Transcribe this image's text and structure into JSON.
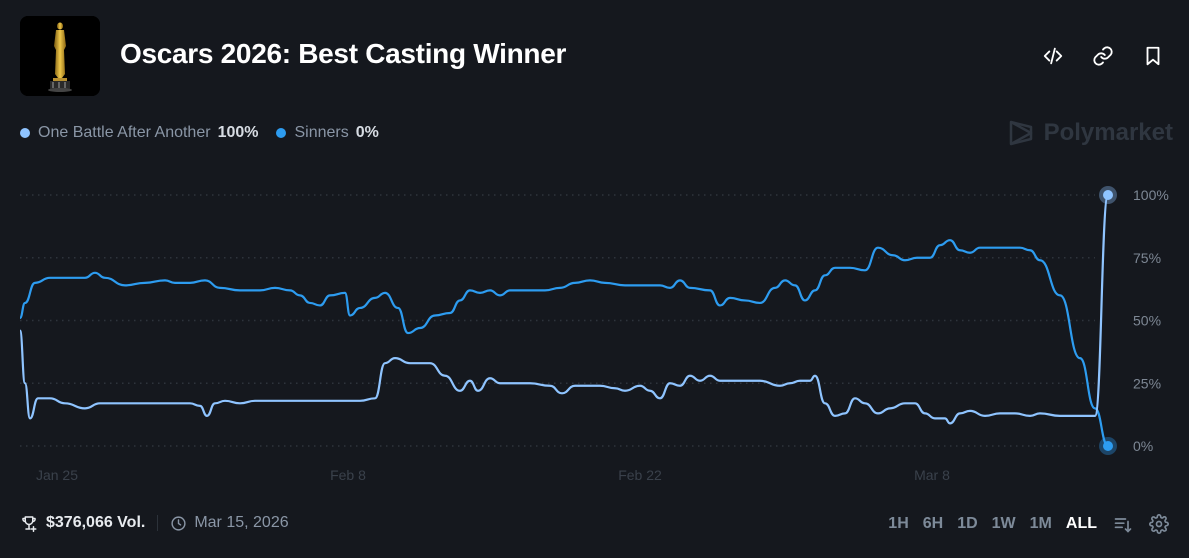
{
  "header": {
    "title": "Oscars 2026: Best Casting Winner",
    "logo_icon": "oscar-statuette-image",
    "actions": [
      {
        "name": "embed-button",
        "icon": "code-icon"
      },
      {
        "name": "copy-link-button",
        "icon": "link-icon"
      },
      {
        "name": "bookmark-button",
        "icon": "bookmark-icon"
      }
    ]
  },
  "legend": [
    {
      "name": "One Battle After Another",
      "value": "100%",
      "color": "#8fc4ff"
    },
    {
      "name": "Sinners",
      "value": "0%",
      "color": "#2d9cf0"
    }
  ],
  "brand": {
    "label": "Polymarket"
  },
  "footer": {
    "volume": "$376,066 Vol.",
    "date": "Mar 15, 2026"
  },
  "controls": {
    "ranges": [
      "1H",
      "6H",
      "1D",
      "1W",
      "1M",
      "ALL"
    ],
    "active_range": "ALL"
  },
  "chart_data": {
    "type": "line",
    "title": "Oscars 2026: Best Casting Winner",
    "xlabel": "",
    "ylabel": "",
    "ylim": [
      0,
      100
    ],
    "y_ticks": [
      "0%",
      "25%",
      "50%",
      "75%",
      "100%"
    ],
    "x_ticks": [
      "Jan 25",
      "Feb 8",
      "Feb 22",
      "Mar 8"
    ],
    "grid": "horizontal dotted",
    "legend_position": "top-left",
    "x_range": [
      "~Jan 23, 2026",
      "Mar 15, 2026"
    ],
    "series": [
      {
        "name": "One Battle After Another",
        "color": "#8fc4ff",
        "final": 100,
        "points": [
          [
            20,
            46
          ],
          [
            25,
            25
          ],
          [
            30,
            11
          ],
          [
            38,
            19
          ],
          [
            50,
            19
          ],
          [
            65,
            17
          ],
          [
            85,
            15
          ],
          [
            100,
            17
          ],
          [
            130,
            17
          ],
          [
            160,
            17
          ],
          [
            190,
            17
          ],
          [
            200,
            16
          ],
          [
            207,
            12
          ],
          [
            215,
            17
          ],
          [
            225,
            18
          ],
          [
            240,
            17
          ],
          [
            255,
            18
          ],
          [
            270,
            18
          ],
          [
            300,
            18
          ],
          [
            345,
            18
          ],
          [
            360,
            18
          ],
          [
            375,
            19
          ],
          [
            385,
            33
          ],
          [
            395,
            35
          ],
          [
            410,
            33
          ],
          [
            430,
            33
          ],
          [
            445,
            28
          ],
          [
            460,
            22
          ],
          [
            470,
            26
          ],
          [
            478,
            22
          ],
          [
            490,
            27
          ],
          [
            500,
            25
          ],
          [
            530,
            25
          ],
          [
            550,
            24
          ],
          [
            562,
            21
          ],
          [
            575,
            24
          ],
          [
            600,
            24
          ],
          [
            615,
            23
          ],
          [
            625,
            22
          ],
          [
            640,
            24
          ],
          [
            650,
            22
          ],
          [
            660,
            19
          ],
          [
            670,
            25
          ],
          [
            680,
            24
          ],
          [
            690,
            28
          ],
          [
            700,
            26
          ],
          [
            710,
            28
          ],
          [
            720,
            26
          ],
          [
            745,
            26
          ],
          [
            760,
            26
          ],
          [
            780,
            24
          ],
          [
            790,
            25
          ],
          [
            800,
            26
          ],
          [
            810,
            26
          ],
          [
            815,
            28
          ],
          [
            825,
            17
          ],
          [
            835,
            12
          ],
          [
            845,
            13
          ],
          [
            855,
            19
          ],
          [
            865,
            17
          ],
          [
            878,
            13
          ],
          [
            890,
            15
          ],
          [
            905,
            17
          ],
          [
            915,
            17
          ],
          [
            925,
            13
          ],
          [
            935,
            11
          ],
          [
            945,
            11
          ],
          [
            950,
            9
          ],
          [
            960,
            13
          ],
          [
            970,
            14
          ],
          [
            985,
            12
          ],
          [
            1000,
            13
          ],
          [
            1015,
            13
          ],
          [
            1030,
            12
          ],
          [
            1040,
            13
          ],
          [
            1060,
            12
          ],
          [
            1080,
            12
          ],
          [
            1095,
            12
          ],
          [
            1108,
            100
          ]
        ]
      },
      {
        "name": "Sinners",
        "color": "#2d9cf0",
        "final": 0,
        "points": [
          [
            20,
            51
          ],
          [
            25,
            57
          ],
          [
            35,
            65
          ],
          [
            50,
            67
          ],
          [
            65,
            67
          ],
          [
            85,
            67
          ],
          [
            95,
            69
          ],
          [
            105,
            67
          ],
          [
            125,
            64
          ],
          [
            145,
            65
          ],
          [
            165,
            66
          ],
          [
            175,
            65
          ],
          [
            190,
            65
          ],
          [
            205,
            66
          ],
          [
            220,
            63
          ],
          [
            240,
            62
          ],
          [
            260,
            62
          ],
          [
            275,
            63
          ],
          [
            290,
            62
          ],
          [
            300,
            60
          ],
          [
            310,
            57
          ],
          [
            320,
            56
          ],
          [
            330,
            60
          ],
          [
            345,
            61
          ],
          [
            350,
            52
          ],
          [
            360,
            55
          ],
          [
            375,
            59
          ],
          [
            385,
            61
          ],
          [
            398,
            55
          ],
          [
            408,
            45
          ],
          [
            420,
            47
          ],
          [
            435,
            52
          ],
          [
            450,
            53
          ],
          [
            460,
            58
          ],
          [
            470,
            62
          ],
          [
            480,
            61
          ],
          [
            490,
            62
          ],
          [
            500,
            60
          ],
          [
            510,
            62
          ],
          [
            525,
            62
          ],
          [
            545,
            62
          ],
          [
            560,
            63
          ],
          [
            575,
            65
          ],
          [
            590,
            66
          ],
          [
            605,
            65
          ],
          [
            625,
            64
          ],
          [
            640,
            64
          ],
          [
            660,
            64
          ],
          [
            670,
            63
          ],
          [
            680,
            66
          ],
          [
            690,
            63
          ],
          [
            710,
            62
          ],
          [
            720,
            56
          ],
          [
            730,
            59
          ],
          [
            745,
            58
          ],
          [
            760,
            57
          ],
          [
            775,
            63
          ],
          [
            785,
            66
          ],
          [
            795,
            64
          ],
          [
            805,
            58
          ],
          [
            815,
            62
          ],
          [
            825,
            68
          ],
          [
            835,
            71
          ],
          [
            850,
            71
          ],
          [
            865,
            70
          ],
          [
            878,
            79
          ],
          [
            893,
            76
          ],
          [
            905,
            74
          ],
          [
            917,
            75
          ],
          [
            930,
            75
          ],
          [
            940,
            80
          ],
          [
            950,
            82
          ],
          [
            960,
            78
          ],
          [
            970,
            77
          ],
          [
            980,
            79
          ],
          [
            1000,
            79
          ],
          [
            1020,
            79
          ],
          [
            1030,
            78
          ],
          [
            1040,
            74
          ],
          [
            1060,
            60
          ],
          [
            1080,
            35
          ],
          [
            1095,
            15
          ],
          [
            1108,
            0
          ]
        ]
      }
    ]
  }
}
